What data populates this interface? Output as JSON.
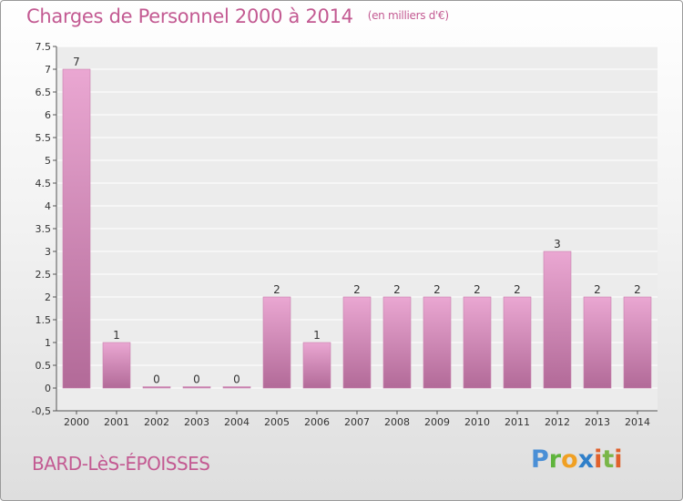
{
  "header": {
    "title": "Charges de Personnel 2000 à 2014",
    "unit": "(en milliers d'€)"
  },
  "footer": {
    "commune": "BARD-LèS-ÉPOISSES",
    "brand": "Proxiti"
  },
  "colors": {
    "accent": "#c35a92",
    "bar_top": "#eaa7d2",
    "bar_bottom": "#b26a98"
  },
  "chart_data": {
    "type": "bar",
    "categories": [
      "2000",
      "2001",
      "2002",
      "2003",
      "2004",
      "2005",
      "2006",
      "2007",
      "2008",
      "2009",
      "2010",
      "2011",
      "2012",
      "2013",
      "2014"
    ],
    "values": [
      7,
      1,
      0,
      0,
      0,
      2,
      1,
      2,
      2,
      2,
      2,
      2,
      3,
      2,
      2
    ],
    "data_labels": [
      "7",
      "1",
      "0",
      "0",
      "0",
      "2",
      "1",
      "2",
      "2",
      "2",
      "2",
      "2",
      "3",
      "2",
      "2"
    ],
    "ylim": [
      -0.5,
      7.5
    ],
    "yticks": [
      -0.5,
      0,
      0.5,
      1,
      1.5,
      2,
      2.5,
      3,
      3.5,
      4,
      4.5,
      5,
      5.5,
      6,
      6.5,
      7,
      7.5
    ],
    "ytick_labels": [
      "-0,5",
      "0",
      "0.5",
      "1",
      "1.5",
      "2",
      "2.5",
      "3",
      "3.5",
      "4",
      "4.5",
      "5",
      "5.5",
      "6",
      "6.5",
      "7",
      "7.5"
    ],
    "grid": true,
    "legend": "none"
  }
}
